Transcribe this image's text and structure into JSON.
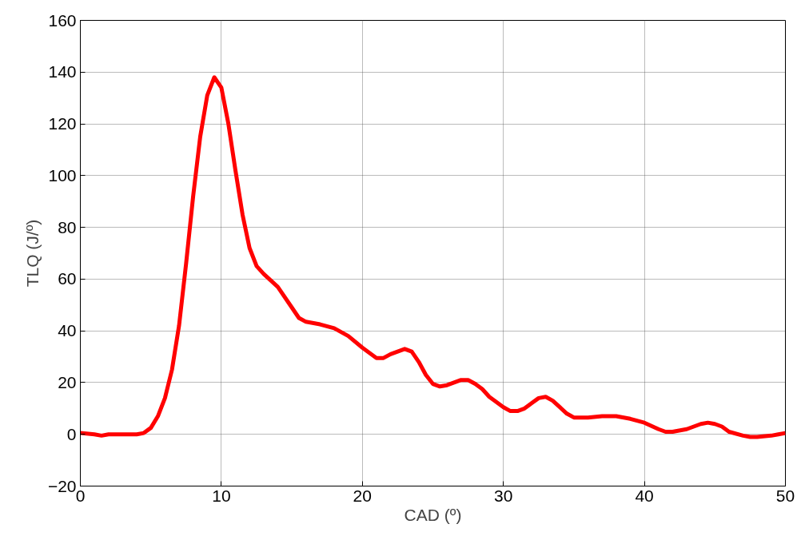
{
  "chart_data": {
    "type": "line",
    "xlabel": "CAD (º)",
    "ylabel": "TLQ (J/º)",
    "xlim": [
      0,
      50
    ],
    "xticks": [
      0,
      10,
      20,
      30,
      40,
      50
    ],
    "ylim": [
      -20,
      160
    ],
    "yticks": [
      -20,
      0,
      20,
      40,
      60,
      80,
      100,
      120,
      140,
      160
    ],
    "grid": true,
    "marker": "none",
    "line_style": "solid",
    "series": [
      {
        "color": "#ff0000",
        "x": [
          0,
          1,
          1.5,
          2,
          4,
          4.5,
          5,
          5.5,
          6,
          6.5,
          7,
          7.5,
          8,
          8.5,
          9,
          9.5,
          10,
          10.5,
          11,
          11.5,
          12,
          12.5,
          13,
          14,
          15,
          15.5,
          16,
          17,
          18,
          19,
          20,
          21,
          21.5,
          22,
          23,
          23.5,
          24,
          24.5,
          25,
          25.5,
          26,
          27,
          27.5,
          28,
          28.5,
          29,
          30,
          30.5,
          31,
          31.5,
          32,
          32.5,
          33,
          33.5,
          34,
          34.5,
          35,
          36,
          37,
          38,
          39,
          40,
          41,
          41.5,
          42,
          43,
          43.5,
          44,
          44.5,
          45,
          45.5,
          46,
          47,
          47.5,
          48,
          49,
          49.5,
          50
        ],
        "values": [
          0.5,
          0,
          -0.5,
          0,
          0,
          0.5,
          2.5,
          7,
          14,
          25,
          42,
          66,
          92,
          115,
          131,
          138,
          134,
          120,
          102,
          85,
          72,
          65,
          62,
          57,
          49,
          45,
          43.5,
          42.5,
          41,
          38,
          33.5,
          29.5,
          29.5,
          31,
          33,
          32,
          28,
          23,
          19.5,
          18.5,
          19,
          21,
          21,
          19.5,
          17.5,
          14.5,
          10.5,
          9,
          9,
          10,
          12,
          14,
          14.5,
          13,
          10.5,
          8,
          6.5,
          6.5,
          7,
          7,
          6,
          4.5,
          2,
          1,
          1,
          2,
          3,
          4,
          4.5,
          4,
          3,
          1,
          -0.5,
          -1,
          -1,
          -0.5,
          0,
          0.5
        ]
      }
    ]
  }
}
